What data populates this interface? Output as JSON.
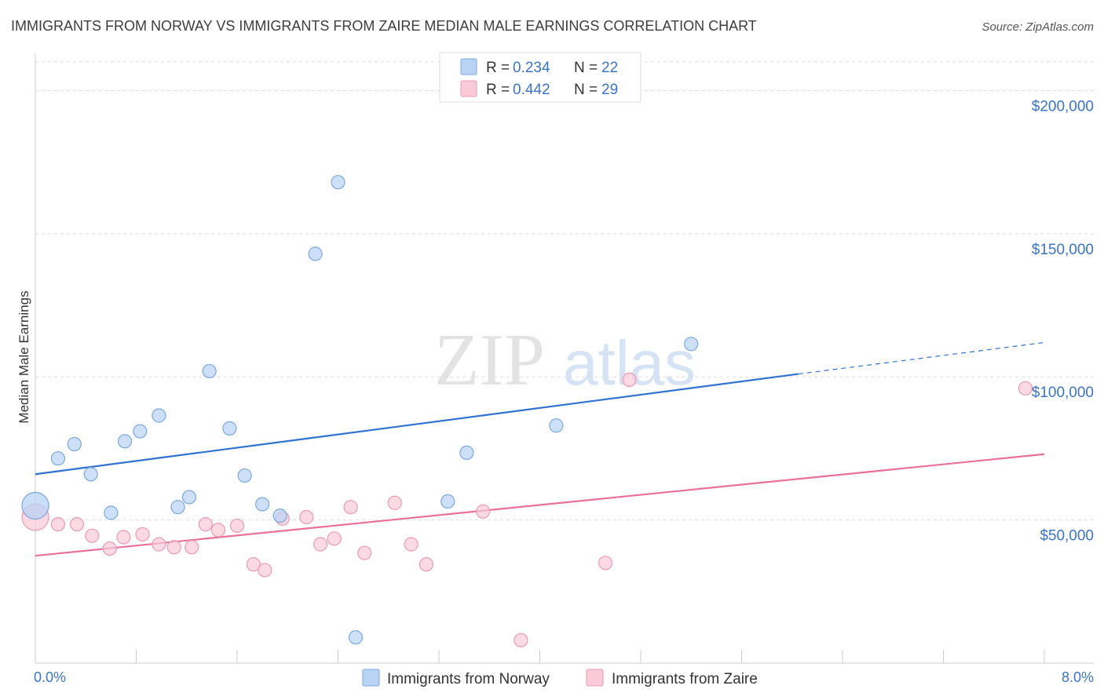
{
  "chart_data": {
    "type": "scatter",
    "title": "IMMIGRANTS FROM NORWAY VS IMMIGRANTS FROM ZAIRE MEDIAN MALE EARNINGS CORRELATION CHART",
    "source": "Source: ZipAtlas.com",
    "ylabel": "Median Male Earnings",
    "xlabel": "",
    "xlim": [
      0,
      8
    ],
    "ylim": [
      0,
      210000
    ],
    "x_tick_labels": {
      "left": "0.0%",
      "right": "8.0%"
    },
    "y_ticks": [
      {
        "value": 200000,
        "label": "$200,000"
      },
      {
        "value": 150000,
        "label": "$150,000"
      },
      {
        "value": 100000,
        "label": "$100,000"
      },
      {
        "value": 50000,
        "label": "$50,000"
      }
    ],
    "legend": {
      "placement": "top-center",
      "entries": [
        {
          "r_label": "R =",
          "r_value": "0.234",
          "n_label": "N =",
          "n_value": "22"
        },
        {
          "r_label": "R =",
          "r_value": "0.442",
          "n_label": "N =",
          "n_value": "29"
        }
      ]
    },
    "bottom_legend": [
      "Immigrants from Norway",
      "Immigrants from Zaire"
    ],
    "watermark": {
      "part1": "ZIP",
      "part2": "atlas"
    },
    "colors": {
      "norway_fill": "#b9d3f5",
      "norway_stroke": "#7aa7e0",
      "norway_line": "#2f72cf",
      "zaire_fill": "#f9cbd8",
      "zaire_stroke": "#ec9ab3",
      "zaire_line": "#e8709a",
      "tick_text": "#3a74c8"
    },
    "series": [
      {
        "name": "Immigrants from Norway",
        "trend": {
          "x0": 0,
          "y0": 66000,
          "x1": 6.05,
          "y1": 101000,
          "x_dash_end": 8,
          "y_dash_end": 112000
        },
        "points": [
          {
            "x": 0.0,
            "y": 55000,
            "big": true
          },
          {
            "x": 0.18,
            "y": 71500
          },
          {
            "x": 0.31,
            "y": 76500
          },
          {
            "x": 0.44,
            "y": 66000
          },
          {
            "x": 0.6,
            "y": 52500
          },
          {
            "x": 0.71,
            "y": 77500
          },
          {
            "x": 0.83,
            "y": 81000
          },
          {
            "x": 0.98,
            "y": 86500
          },
          {
            "x": 1.13,
            "y": 54500
          },
          {
            "x": 1.22,
            "y": 58000
          },
          {
            "x": 1.38,
            "y": 102000
          },
          {
            "x": 1.54,
            "y": 82000
          },
          {
            "x": 1.66,
            "y": 65500
          },
          {
            "x": 1.8,
            "y": 55500
          },
          {
            "x": 1.94,
            "y": 51500
          },
          {
            "x": 2.22,
            "y": 143000
          },
          {
            "x": 2.4,
            "y": 168000
          },
          {
            "x": 2.54,
            "y": 9000
          },
          {
            "x": 3.27,
            "y": 56500
          },
          {
            "x": 3.42,
            "y": 73500
          },
          {
            "x": 4.13,
            "y": 83000
          },
          {
            "x": 5.2,
            "y": 111500
          }
        ]
      },
      {
        "name": "Immigrants from Zaire",
        "trend": {
          "x0": 0,
          "y0": 37500,
          "x1": 8,
          "y1": 73000
        },
        "points": [
          {
            "x": 0.0,
            "y": 51000,
            "big": true
          },
          {
            "x": 0.18,
            "y": 48500
          },
          {
            "x": 0.33,
            "y": 48500
          },
          {
            "x": 0.45,
            "y": 44500
          },
          {
            "x": 0.59,
            "y": 40000
          },
          {
            "x": 0.7,
            "y": 44000
          },
          {
            "x": 0.85,
            "y": 45000
          },
          {
            "x": 0.98,
            "y": 41500
          },
          {
            "x": 1.1,
            "y": 40500
          },
          {
            "x": 1.24,
            "y": 40500
          },
          {
            "x": 1.35,
            "y": 48500
          },
          {
            "x": 1.45,
            "y": 46500
          },
          {
            "x": 1.6,
            "y": 48000
          },
          {
            "x": 1.73,
            "y": 34500
          },
          {
            "x": 1.82,
            "y": 32500
          },
          {
            "x": 1.96,
            "y": 50500
          },
          {
            "x": 2.15,
            "y": 51000
          },
          {
            "x": 2.26,
            "y": 41500
          },
          {
            "x": 2.37,
            "y": 43500
          },
          {
            "x": 2.5,
            "y": 54500
          },
          {
            "x": 2.61,
            "y": 38500
          },
          {
            "x": 2.85,
            "y": 56000
          },
          {
            "x": 2.98,
            "y": 41500
          },
          {
            "x": 3.1,
            "y": 34500
          },
          {
            "x": 3.55,
            "y": 53000
          },
          {
            "x": 3.85,
            "y": 8000
          },
          {
            "x": 4.52,
            "y": 35000
          },
          {
            "x": 4.71,
            "y": 99000
          },
          {
            "x": 7.85,
            "y": 96000
          }
        ]
      }
    ]
  }
}
